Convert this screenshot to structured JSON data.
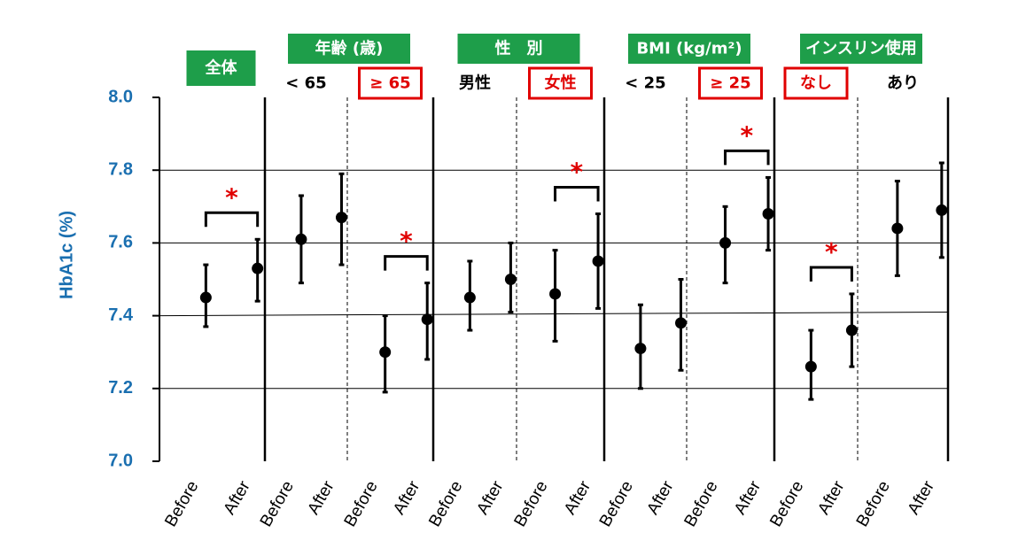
{
  "colors": {
    "axis_label": "#1a6fb0",
    "tick": "#1a6fb0",
    "header_bg": "#1e9e4a",
    "highlight": "#e00000",
    "marker": "#000000"
  },
  "chart_data": {
    "type": "scatter",
    "ylabel": "HbA1c (%)",
    "ylim": [
      7.0,
      8.0
    ],
    "yticks": [
      "7.0",
      "7.2",
      "7.4",
      "7.6",
      "7.8",
      "8.0"
    ],
    "gridlines": [
      7.2,
      7.6,
      7.8
    ],
    "reference_line": {
      "start": 7.4,
      "end": 7.41
    },
    "x_category_labels": [
      "Before",
      "After"
    ],
    "groups": [
      {
        "header": "全体",
        "subgroups": [
          {
            "label": "",
            "highlight": false,
            "points": [
              {
                "x": "Before",
                "y": 7.45,
                "low": 7.37,
                "high": 7.54
              },
              {
                "x": "After",
                "y": 7.53,
                "low": 7.44,
                "high": 7.61
              }
            ],
            "significance": "*"
          }
        ]
      },
      {
        "header": "年齢 (歳)",
        "subgroups": [
          {
            "label": "< 65",
            "highlight": false,
            "points": [
              {
                "x": "Before",
                "y": 7.61,
                "low": 7.49,
                "high": 7.73
              },
              {
                "x": "After",
                "y": 7.67,
                "low": 7.54,
                "high": 7.79
              }
            ],
            "significance": ""
          },
          {
            "label": "≥ 65",
            "highlight": true,
            "points": [
              {
                "x": "Before",
                "y": 7.3,
                "low": 7.19,
                "high": 7.4
              },
              {
                "x": "After",
                "y": 7.39,
                "low": 7.28,
                "high": 7.49
              }
            ],
            "significance": "*"
          }
        ]
      },
      {
        "header": "性　別",
        "subgroups": [
          {
            "label": "男性",
            "highlight": false,
            "points": [
              {
                "x": "Before",
                "y": 7.45,
                "low": 7.36,
                "high": 7.55
              },
              {
                "x": "After",
                "y": 7.5,
                "low": 7.41,
                "high": 7.6
              }
            ],
            "significance": ""
          },
          {
            "label": "女性",
            "highlight": true,
            "points": [
              {
                "x": "Before",
                "y": 7.46,
                "low": 7.33,
                "high": 7.58
              },
              {
                "x": "After",
                "y": 7.55,
                "low": 7.42,
                "high": 7.68
              }
            ],
            "significance": "*"
          }
        ]
      },
      {
        "header": "BMI (kg/m²)",
        "subgroups": [
          {
            "label": "< 25",
            "highlight": false,
            "points": [
              {
                "x": "Before",
                "y": 7.31,
                "low": 7.2,
                "high": 7.43
              },
              {
                "x": "After",
                "y": 7.38,
                "low": 7.25,
                "high": 7.5
              }
            ],
            "significance": ""
          },
          {
            "label": "≥ 25",
            "highlight": true,
            "points": [
              {
                "x": "Before",
                "y": 7.6,
                "low": 7.49,
                "high": 7.7
              },
              {
                "x": "After",
                "y": 7.68,
                "low": 7.58,
                "high": 7.78
              }
            ],
            "significance": "*"
          }
        ]
      },
      {
        "header": "インスリン使用",
        "subgroups": [
          {
            "label": "なし",
            "highlight": true,
            "points": [
              {
                "x": "Before",
                "y": 7.26,
                "low": 7.17,
                "high": 7.36
              },
              {
                "x": "After",
                "y": 7.36,
                "low": 7.26,
                "high": 7.46
              }
            ],
            "significance": "*"
          },
          {
            "label": "あり",
            "highlight": false,
            "points": [
              {
                "x": "Before",
                "y": 7.64,
                "low": 7.51,
                "high": 7.77
              },
              {
                "x": "After",
                "y": 7.69,
                "low": 7.56,
                "high": 7.82
              }
            ],
            "significance": ""
          }
        ]
      }
    ]
  }
}
